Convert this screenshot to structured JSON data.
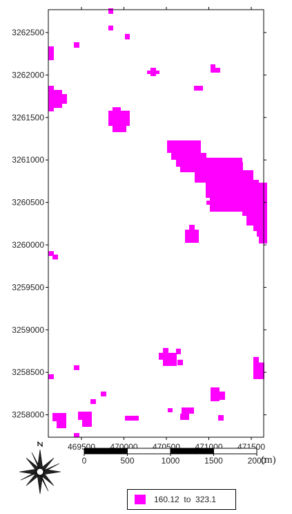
{
  "map": {
    "x_ticks": [
      "469500",
      "470000",
      "470500",
      "471000",
      "471500"
    ],
    "y_ticks": [
      "3262500",
      "3262000",
      "3261500",
      "3261000",
      "3260500",
      "3260000",
      "3259500",
      "3259000",
      "3258500",
      "3258000"
    ],
    "fill_color": "#ff00ff"
  },
  "scale_bar": {
    "labels": [
      "0",
      "500",
      "1000",
      "1500",
      "2000"
    ],
    "unit": "(m)"
  },
  "legend": {
    "range_label": "160.12  to  323.1",
    "color": "#ff00ff"
  },
  "north_arrow": {
    "icon": "compass-rose-icon"
  }
}
